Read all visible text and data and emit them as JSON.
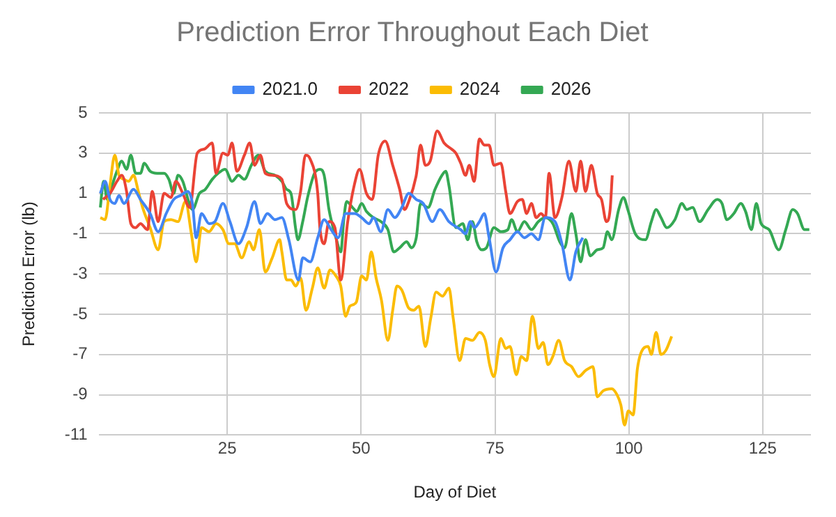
{
  "chart_data": {
    "type": "line",
    "title": "Prediction Error Throughout Each Diet",
    "xlabel": "Day of Diet",
    "ylabel": "Prediction Error (lb)",
    "xlim": [
      1,
      134
    ],
    "xticks": [
      25,
      50,
      75,
      100,
      125
    ],
    "ylim": [
      -11,
      5
    ],
    "yticks": [
      5,
      3,
      1,
      -1,
      -3,
      -5,
      -7,
      -9,
      -11
    ],
    "grid": true,
    "legend": "top",
    "marker": "none",
    "line_style": "solid",
    "series": [
      {
        "name": "2021.0",
        "color": "#4285f4",
        "x": [
          1.3,
          2.2,
          3.1,
          4,
          4.8,
          5.7,
          7.5,
          8.8,
          10.6,
          12.1,
          13.6,
          15,
          16.3,
          17.6,
          18.5,
          19.2,
          20.2,
          21.6,
          22.7,
          24.2,
          25.5,
          27.1,
          28.6,
          30.1,
          31.2,
          32.5,
          33.9,
          35.2,
          36.5,
          38.3,
          39.1,
          40.5,
          41.9,
          43.1,
          44.4,
          45.7,
          47.1,
          48.8,
          50.1,
          51.5,
          52.3,
          53.7,
          55,
          56.3,
          57.6,
          58.9,
          60.3,
          61.6,
          63.3,
          64.7,
          66.4,
          68.6,
          69.5,
          70.4,
          71.2,
          72.1,
          73,
          73.9,
          75.2,
          76.5,
          77.8,
          79.2,
          80.5,
          81.8,
          83.1,
          84.4,
          86.2,
          87.5,
          89,
          90.1,
          91.4
        ],
        "values": [
          1,
          1.6,
          0.7,
          0.5,
          0.9,
          0.5,
          1.2,
          0.7,
          0,
          -0.9,
          0,
          0.7,
          0.9,
          1.1,
          0.5,
          -1.2,
          0,
          -0.5,
          -0.4,
          0.5,
          -0.4,
          -1.5,
          -0.7,
          0.6,
          -0.5,
          0,
          -0.3,
          -0.2,
          -1.3,
          -3.3,
          -2.2,
          -2.4,
          -1.2,
          -0.3,
          -0.8,
          -1.2,
          0,
          0,
          -0.2,
          -0.5,
          -0.2,
          -0.9,
          0.2,
          -0.2,
          0.3,
          1,
          0.7,
          0.5,
          -0.4,
          0.2,
          -0.4,
          -0.8,
          -1,
          -0.4,
          -0.7,
          -0.4,
          0,
          -1.2,
          -2.9,
          -1.7,
          -1.3,
          -0.9,
          -1.2,
          -1,
          -1.3,
          -0.2,
          -0.4,
          -1.5,
          -3.3,
          -1.9,
          -1.2
        ]
      },
      {
        "name": "2022",
        "color": "#ea4335",
        "x": [
          1.8,
          3.1,
          4.4,
          5.3,
          6.2,
          7,
          7.9,
          8.8,
          10.1,
          11,
          12.1,
          13.2,
          14.5,
          15.4,
          16.7,
          18,
          19.4,
          20.7,
          22.2,
          22.9,
          24.2,
          25.1,
          25.9,
          26.8,
          28.2,
          29.2,
          30.1,
          31.2,
          32.1,
          33.4,
          35.2,
          36.1,
          37.8,
          38.7,
          39.6,
          40.5,
          41.9,
          42.3,
          43.1,
          44,
          45.1,
          46.2,
          47.5,
          48.8,
          49.7,
          51,
          52.1,
          53.2,
          54.5,
          55.9,
          57.2,
          58.1,
          58.9,
          60.3,
          61.1,
          62,
          62.9,
          64.2,
          65.5,
          66.9,
          67.7,
          68.6,
          69.5,
          70.2,
          71.1,
          72.1,
          73,
          73.9,
          74.8,
          76.1,
          77,
          77.8,
          79.2,
          80.1,
          80.9,
          81.8,
          82.7,
          83.6,
          84.4,
          85.1,
          86.2,
          87.5,
          88.8,
          90.1,
          91,
          91.9,
          93,
          94.1,
          94.9,
          95.8,
          96.5,
          96.9
        ],
        "values": [
          0.7,
          1,
          1.6,
          1.9,
          1.1,
          -0.5,
          -0.7,
          -0.5,
          -0.8,
          1.1,
          -0.4,
          1,
          0.8,
          1.6,
          1,
          0.3,
          3,
          3.2,
          3.5,
          2,
          3,
          2.9,
          3.5,
          2.1,
          2.9,
          3.5,
          2.4,
          2.9,
          2,
          1.9,
          1.7,
          0.5,
          0.2,
          1.1,
          2.9,
          2.7,
          1,
          -0.7,
          -1.5,
          -0.4,
          -0.7,
          -3.3,
          -0.4,
          1.5,
          2.2,
          1,
          0.7,
          2.9,
          3.6,
          2.4,
          1.2,
          0.2,
          0.6,
          1.9,
          3.4,
          2.4,
          2.6,
          4.1,
          3.5,
          3.2,
          3,
          2.5,
          1.9,
          2.4,
          1.6,
          3.7,
          3.4,
          3.4,
          2.4,
          2.5,
          1.1,
          0,
          0.6,
          0.7,
          0,
          0.5,
          -0.2,
          0,
          -0.2,
          2,
          -0.2,
          0.8,
          2.6,
          1.1,
          2.6,
          1.1,
          2.4,
          1,
          0.7,
          -0.4,
          0.2,
          1.9
        ]
      },
      {
        "name": "2024",
        "color": "#fbbc04",
        "x": [
          1.3,
          2.2,
          3.1,
          4,
          4.8,
          5.7,
          6.6,
          7.5,
          8.4,
          9.2,
          10.6,
          12.1,
          13.2,
          14.5,
          15.8,
          17.2,
          18.3,
          19.2,
          20.2,
          21.6,
          22.9,
          24.2,
          25.3,
          26.4,
          27.7,
          29.1,
          29.9,
          31,
          32.1,
          33.4,
          34.8,
          35.2,
          36.1,
          36.9,
          37.8,
          38.7,
          39.7,
          40.9,
          41.9,
          43.1,
          44.2,
          45.3,
          46.2,
          47.1,
          47.9,
          49.1,
          50.1,
          51,
          51.9,
          52.8,
          53.8,
          55,
          55.9,
          56.7,
          57.6,
          58.9,
          59.8,
          60.8,
          62,
          63,
          64,
          65.2,
          66.4,
          67.2,
          68.4,
          69.5,
          70.8,
          72.1,
          73.2,
          74,
          74.8,
          76.1,
          77,
          77.8,
          79,
          79.9,
          80.9,
          82,
          83.1,
          84,
          84.9,
          85.8,
          86.9,
          88,
          89.3,
          90.6,
          91.9,
          93.3,
          94.1,
          95.2,
          96.8,
          97.8,
          98.5,
          99.2,
          99.9,
          100.8,
          101.6,
          102.7,
          103.6,
          104.2,
          105.1,
          106,
          106.9,
          108
        ],
        "values": [
          -0.2,
          -0.3,
          1.4,
          2.9,
          1.9,
          1.7,
          1.6,
          1.9,
          1.1,
          0.3,
          -0.7,
          -1.8,
          -0.4,
          -0.3,
          -0.4,
          0.6,
          -1,
          -2.4,
          -0.7,
          -0.9,
          -0.5,
          -0.8,
          -1.5,
          -1.5,
          -2.2,
          -1.4,
          -1.8,
          -0.8,
          -2.9,
          -2.2,
          -1.3,
          -1.9,
          -3.3,
          -3.3,
          -3.6,
          -3.2,
          -4.8,
          -3.7,
          -2.7,
          -3.7,
          -2.8,
          -3.1,
          -3.6,
          -5.1,
          -4.6,
          -4.4,
          -3.1,
          -3.3,
          -1.9,
          -3.2,
          -4.3,
          -6.3,
          -4.8,
          -3.6,
          -3.8,
          -4.7,
          -4.8,
          -4.6,
          -6.6,
          -5.2,
          -3.9,
          -4.1,
          -3.7,
          -5.2,
          -7.3,
          -6.2,
          -6.3,
          -5.9,
          -6.3,
          -7.5,
          -8.1,
          -6.2,
          -6.7,
          -6.6,
          -8,
          -7.1,
          -7.3,
          -5.1,
          -6.7,
          -6.4,
          -7.5,
          -7.1,
          -6.3,
          -7.3,
          -7.6,
          -8.1,
          -7.8,
          -7.6,
          -9.1,
          -8.8,
          -8.7,
          -9,
          -9.5,
          -10.5,
          -9.8,
          -10,
          -7.7,
          -6.7,
          -6.6,
          -7,
          -5.9,
          -7,
          -6.8,
          -6.1
        ]
      },
      {
        "name": "2026",
        "color": "#34a853",
        "x": [
          1.3,
          1.9,
          2.6,
          3.5,
          4.4,
          5.3,
          6.2,
          7,
          7.9,
          8.8,
          9.5,
          10.6,
          11.9,
          13.2,
          14.1,
          15,
          15.8,
          16.7,
          17.8,
          18.5,
          19.8,
          20.9,
          22.2,
          23.3,
          24.6,
          25.9,
          27.1,
          28.2,
          29.5,
          30.8,
          32.1,
          33.9,
          35.2,
          36.1,
          36.9,
          37.8,
          38.2,
          39.1,
          40,
          41.3,
          42.3,
          43.1,
          44,
          45.3,
          46.2,
          46.8,
          47.3,
          48.4,
          49.2,
          50.1,
          51,
          52.3,
          53.7,
          55,
          56.1,
          57.2,
          58.5,
          59.4,
          60.3,
          61.1,
          62.5,
          63.8,
          65.1,
          65.8,
          66.4,
          67.7,
          69,
          69.9,
          70.8,
          71.6,
          72.5,
          73.4,
          74.8,
          76.1,
          77.4,
          78.1,
          79.2,
          80.5,
          81.8,
          83.1,
          84.4,
          85.8,
          87.1,
          88,
          89.3,
          90.1,
          91,
          91.9,
          92.8,
          94.1,
          95.2,
          96,
          96.8,
          98.1,
          99,
          99.8,
          101.2,
          103.1,
          104.2,
          105.1,
          106,
          107.1,
          108.6,
          109.9,
          110.8,
          111.9,
          113.2,
          114.8,
          116.5,
          117.4,
          118.3,
          119.6,
          120.9,
          121.8,
          122.9,
          123.8,
          124.7,
          126.2,
          128,
          129.3,
          130.6,
          131.5,
          132.8,
          133.7
        ],
        "values": [
          0.3,
          1.6,
          0.7,
          1.4,
          2.1,
          2.6,
          2.2,
          2.9,
          2,
          2,
          2.5,
          2.1,
          2,
          2,
          1.7,
          1,
          1.9,
          1.6,
          0.6,
          0.2,
          1,
          1.2,
          1.7,
          2,
          2.2,
          1.6,
          1.9,
          1.7,
          2.4,
          2.9,
          2.1,
          1.9,
          1.6,
          1.2,
          1,
          -0.8,
          -1.3,
          -0.4,
          0.8,
          2,
          2.2,
          1.9,
          0.2,
          -1.2,
          -1.9,
          -0.2,
          0.6,
          0.3,
          0.1,
          0.5,
          0.1,
          -0.2,
          -0.4,
          -0.8,
          -1.9,
          -1.7,
          -1.4,
          -1.7,
          -1.2,
          0.5,
          0.3,
          1.2,
          1.9,
          2.1,
          1.4,
          -0.7,
          -0.5,
          -1.3,
          -0.4,
          -1.4,
          -1.8,
          -1.7,
          -0.7,
          -0.9,
          -0.8,
          -0.3,
          -0.9,
          -0.4,
          -0.8,
          -0.4,
          -0.2,
          -0.5,
          -1.4,
          -1.7,
          0,
          -1,
          -2.4,
          -1.3,
          -2.1,
          -1.8,
          -1.7,
          -0.9,
          -1.3,
          0.2,
          0.8,
          0.2,
          -1,
          -1.3,
          -0.4,
          0.2,
          -0.2,
          -0.7,
          -0.3,
          0.5,
          0.2,
          0.3,
          -0.4,
          0.2,
          0.7,
          0.5,
          -0.3,
          0,
          0.5,
          0.1,
          -0.8,
          0.5,
          -0.5,
          -0.8,
          -1.8,
          -0.8,
          0.2,
          0,
          -0.8,
          -0.8
        ]
      }
    ]
  }
}
